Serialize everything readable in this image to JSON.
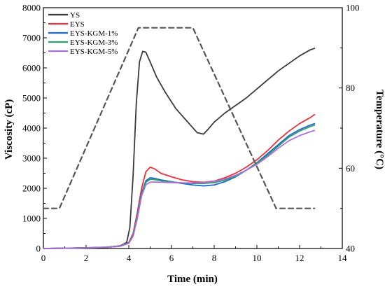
{
  "chart_data": {
    "type": "line",
    "xlabel": "Time (min)",
    "ylabel_left": "Viscosity (cP)",
    "ylabel_right": "Temperature (°C)",
    "xlim": [
      0,
      14
    ],
    "ylim_left": [
      0,
      8000
    ],
    "ylim_right": [
      40,
      100
    ],
    "x_ticks": [
      0,
      2,
      4,
      6,
      8,
      10,
      12,
      14
    ],
    "y_left_ticks": [
      0,
      1000,
      2000,
      3000,
      4000,
      5000,
      6000,
      7000,
      8000
    ],
    "y_right_ticks": [
      40,
      60,
      80,
      100
    ],
    "legend_position": "top-left",
    "grid": false,
    "series": [
      {
        "name": "YS",
        "color": "#3a3a3a",
        "axis": "left",
        "x": [
          0,
          1,
          2,
          3,
          3.6,
          3.9,
          4.05,
          4.2,
          4.35,
          4.5,
          4.65,
          4.8,
          5.0,
          5.3,
          5.7,
          6.2,
          6.7,
          7.2,
          7.5,
          7.7,
          8.0,
          8.5,
          9.0,
          9.5,
          10.0,
          10.5,
          11.0,
          11.5,
          12.0,
          12.5,
          12.7
        ],
        "y": [
          0,
          10,
          25,
          45,
          90,
          200,
          700,
          2400,
          4800,
          6200,
          6550,
          6520,
          6200,
          5700,
          5200,
          4650,
          4250,
          3850,
          3800,
          3950,
          4200,
          4500,
          4750,
          5000,
          5300,
          5600,
          5900,
          6150,
          6400,
          6600,
          6650
        ]
      },
      {
        "name": "EYS",
        "color": "#e8313a",
        "axis": "left",
        "x": [
          0,
          1,
          2,
          3,
          3.6,
          4.0,
          4.2,
          4.4,
          4.6,
          4.8,
          5.0,
          5.2,
          5.5,
          6.0,
          6.5,
          7.0,
          7.5,
          8.0,
          8.5,
          9.0,
          9.5,
          10.0,
          10.5,
          11.0,
          11.5,
          12.0,
          12.5,
          12.7
        ],
        "y": [
          0,
          10,
          20,
          40,
          80,
          200,
          500,
          1200,
          2000,
          2550,
          2700,
          2650,
          2500,
          2380,
          2280,
          2220,
          2200,
          2240,
          2350,
          2500,
          2700,
          2950,
          3250,
          3600,
          3900,
          4150,
          4350,
          4450
        ]
      },
      {
        "name": "EYS-KGM-1%",
        "color": "#1f66c9",
        "axis": "left",
        "x": [
          0,
          1,
          2,
          3,
          3.6,
          4.0,
          4.2,
          4.4,
          4.6,
          4.8,
          5.0,
          5.2,
          5.5,
          6.0,
          6.5,
          7.0,
          7.5,
          8.0,
          8.5,
          9.0,
          9.5,
          10.0,
          10.5,
          11.0,
          11.5,
          12.0,
          12.5,
          12.7
        ],
        "y": [
          0,
          10,
          20,
          40,
          80,
          190,
          450,
          1100,
          1850,
          2250,
          2350,
          2330,
          2280,
          2220,
          2160,
          2110,
          2080,
          2110,
          2220,
          2380,
          2600,
          2850,
          3150,
          3450,
          3750,
          3950,
          4100,
          4150
        ]
      },
      {
        "name": "EYS-KGM-3%",
        "color": "#2f9e6e",
        "axis": "left",
        "x": [
          0,
          1,
          2,
          3,
          3.6,
          4.0,
          4.2,
          4.4,
          4.6,
          4.8,
          5.0,
          5.2,
          5.5,
          6.0,
          6.5,
          7.0,
          7.5,
          8.0,
          8.5,
          9.0,
          9.5,
          10.0,
          10.5,
          11.0,
          11.5,
          12.0,
          12.5,
          12.7
        ],
        "y": [
          0,
          10,
          20,
          40,
          80,
          180,
          430,
          1050,
          1800,
          2200,
          2300,
          2290,
          2250,
          2210,
          2180,
          2160,
          2160,
          2190,
          2270,
          2400,
          2600,
          2830,
          3100,
          3400,
          3700,
          3900,
          4050,
          4100
        ]
      },
      {
        "name": "EYS-KGM-5%",
        "color": "#a86fd6",
        "axis": "left",
        "x": [
          0,
          1,
          2,
          3,
          3.6,
          4.0,
          4.2,
          4.4,
          4.6,
          4.8,
          5.0,
          5.2,
          5.5,
          6.0,
          6.5,
          7.0,
          7.5,
          8.0,
          8.5,
          9.0,
          9.5,
          10.0,
          10.5,
          11.0,
          11.5,
          12.0,
          12.5,
          12.7
        ],
        "y": [
          0,
          10,
          20,
          40,
          75,
          170,
          400,
          1000,
          1750,
          2120,
          2200,
          2210,
          2200,
          2190,
          2180,
          2180,
          2190,
          2230,
          2310,
          2430,
          2600,
          2800,
          3050,
          3330,
          3580,
          3750,
          3880,
          3920
        ]
      },
      {
        "color": "#555555",
        "axis": "right",
        "dashed": true,
        "x": [
          0,
          0.75,
          4.45,
          7.0,
          10.9,
          12.7
        ],
        "y": [
          50,
          50,
          95,
          95,
          50,
          50
        ]
      }
    ]
  }
}
